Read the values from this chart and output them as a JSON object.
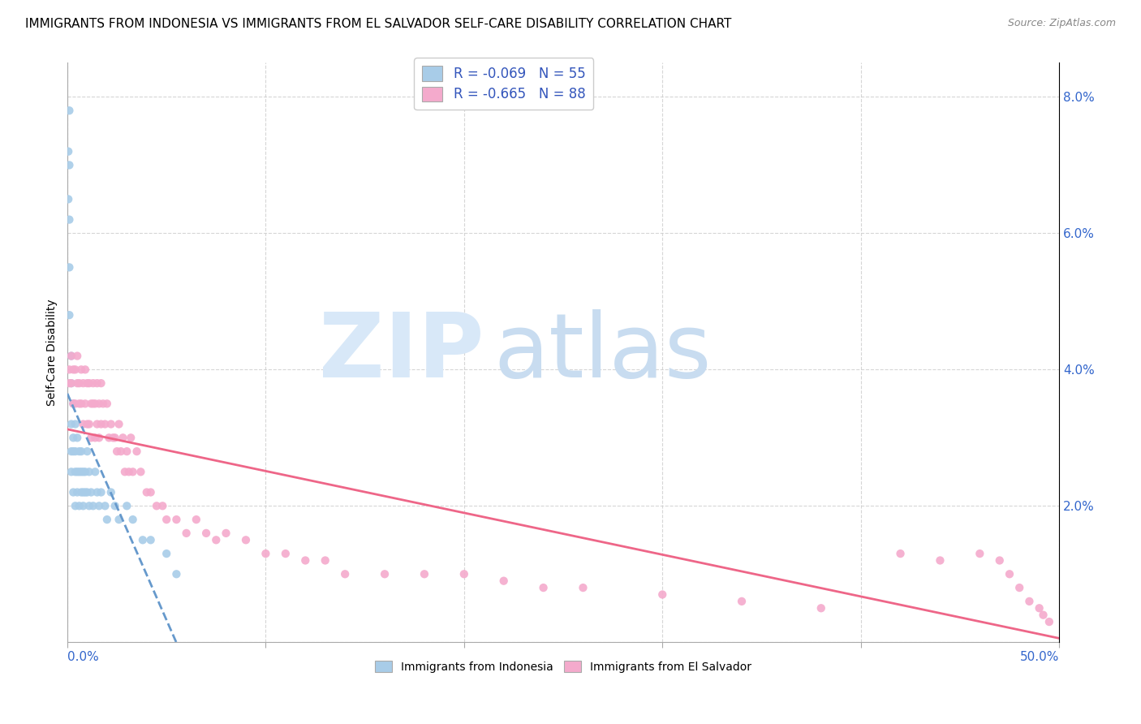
{
  "title": "IMMIGRANTS FROM INDONESIA VS IMMIGRANTS FROM EL SALVADOR SELF-CARE DISABILITY CORRELATION CHART",
  "source": "Source: ZipAtlas.com",
  "ylabel": "Self-Care Disability",
  "series": [
    {
      "label": "Immigrants from Indonesia",
      "R": -0.069,
      "N": 55,
      "color": "#A8CCE8",
      "line_color": "#6699CC",
      "line_style": "--",
      "x": [
        0.0005,
        0.0005,
        0.001,
        0.001,
        0.001,
        0.001,
        0.001,
        0.002,
        0.002,
        0.002,
        0.002,
        0.002,
        0.003,
        0.003,
        0.003,
        0.003,
        0.004,
        0.004,
        0.004,
        0.004,
        0.005,
        0.005,
        0.005,
        0.006,
        0.006,
        0.006,
        0.007,
        0.007,
        0.007,
        0.008,
        0.008,
        0.008,
        0.009,
        0.009,
        0.01,
        0.01,
        0.011,
        0.011,
        0.012,
        0.013,
        0.014,
        0.015,
        0.016,
        0.017,
        0.019,
        0.02,
        0.022,
        0.024,
        0.026,
        0.03,
        0.033,
        0.038,
        0.042,
        0.05,
        0.055
      ],
      "y": [
        0.072,
        0.065,
        0.078,
        0.07,
        0.062,
        0.055,
        0.048,
        0.042,
        0.038,
        0.032,
        0.028,
        0.025,
        0.035,
        0.03,
        0.028,
        0.022,
        0.032,
        0.028,
        0.025,
        0.02,
        0.03,
        0.025,
        0.022,
        0.028,
        0.025,
        0.02,
        0.028,
        0.025,
        0.022,
        0.025,
        0.022,
        0.02,
        0.025,
        0.022,
        0.028,
        0.022,
        0.025,
        0.02,
        0.022,
        0.02,
        0.025,
        0.022,
        0.02,
        0.022,
        0.02,
        0.018,
        0.022,
        0.02,
        0.018,
        0.02,
        0.018,
        0.015,
        0.015,
        0.013,
        0.01
      ]
    },
    {
      "label": "Immigrants from El Salvador",
      "R": -0.665,
      "N": 88,
      "color": "#F4AACC",
      "line_color": "#EE6688",
      "line_style": "-",
      "x": [
        0.001,
        0.001,
        0.002,
        0.002,
        0.003,
        0.003,
        0.004,
        0.004,
        0.005,
        0.005,
        0.006,
        0.006,
        0.007,
        0.007,
        0.008,
        0.008,
        0.009,
        0.009,
        0.01,
        0.01,
        0.011,
        0.011,
        0.012,
        0.012,
        0.013,
        0.013,
        0.014,
        0.014,
        0.015,
        0.015,
        0.016,
        0.016,
        0.017,
        0.017,
        0.018,
        0.019,
        0.02,
        0.021,
        0.022,
        0.023,
        0.024,
        0.025,
        0.026,
        0.027,
        0.028,
        0.029,
        0.03,
        0.031,
        0.032,
        0.033,
        0.035,
        0.037,
        0.04,
        0.042,
        0.045,
        0.048,
        0.05,
        0.055,
        0.06,
        0.065,
        0.07,
        0.075,
        0.08,
        0.09,
        0.1,
        0.11,
        0.12,
        0.13,
        0.14,
        0.16,
        0.18,
        0.2,
        0.22,
        0.24,
        0.26,
        0.3,
        0.34,
        0.38,
        0.42,
        0.44,
        0.46,
        0.47,
        0.475,
        0.48,
        0.485,
        0.49,
        0.492,
        0.495
      ],
      "y": [
        0.04,
        0.038,
        0.042,
        0.038,
        0.04,
        0.035,
        0.04,
        0.035,
        0.042,
        0.038,
        0.038,
        0.035,
        0.04,
        0.035,
        0.038,
        0.032,
        0.04,
        0.035,
        0.038,
        0.032,
        0.038,
        0.032,
        0.035,
        0.03,
        0.038,
        0.035,
        0.035,
        0.03,
        0.038,
        0.032,
        0.035,
        0.03,
        0.038,
        0.032,
        0.035,
        0.032,
        0.035,
        0.03,
        0.032,
        0.03,
        0.03,
        0.028,
        0.032,
        0.028,
        0.03,
        0.025,
        0.028,
        0.025,
        0.03,
        0.025,
        0.028,
        0.025,
        0.022,
        0.022,
        0.02,
        0.02,
        0.018,
        0.018,
        0.016,
        0.018,
        0.016,
        0.015,
        0.016,
        0.015,
        0.013,
        0.013,
        0.012,
        0.012,
        0.01,
        0.01,
        0.01,
        0.01,
        0.009,
        0.008,
        0.008,
        0.007,
        0.006,
        0.005,
        0.013,
        0.012,
        0.013,
        0.012,
        0.01,
        0.008,
        0.006,
        0.005,
        0.004,
        0.003
      ]
    }
  ],
  "xlim": [
    0,
    0.5
  ],
  "ylim": [
    0,
    0.085
  ],
  "yticks": [
    0.0,
    0.02,
    0.04,
    0.06,
    0.08
  ],
  "ytick_labels": [
    "",
    "2.0%",
    "4.0%",
    "6.0%",
    "8.0%"
  ],
  "xtick_positions": [
    0.0,
    0.1,
    0.2,
    0.3,
    0.4,
    0.5
  ],
  "grid_color": "#CCCCCC",
  "background_color": "#FFFFFF",
  "legend_R_color": "#3355BB",
  "title_fontsize": 11,
  "axis_label_fontsize": 10,
  "tick_fontsize": 10,
  "watermark_zip_color": "#D8E8F8",
  "watermark_atlas_color": "#C8DCF0"
}
